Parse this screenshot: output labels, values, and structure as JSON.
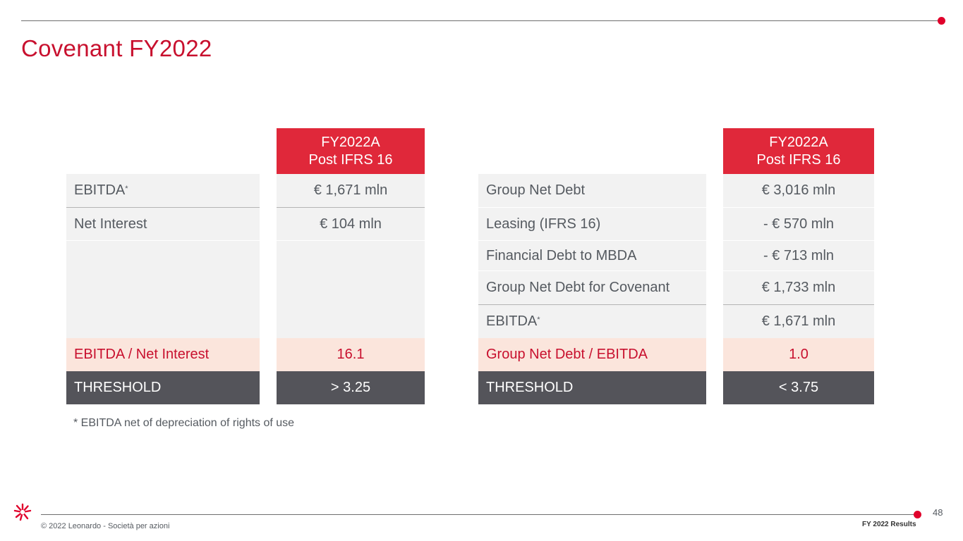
{
  "slide": {
    "title": "Covenant FY2022",
    "footnote": "* EBITDA net of depreciation of rights of use",
    "page_number": "48",
    "copyright": "© 2022 Leonardo - Società per azioni",
    "deck_label": "FY 2022 Results"
  },
  "left_table": {
    "header_line1": "FY2022A",
    "header_line2": "Post IFRS 16",
    "rows": [
      {
        "label": "EBITDA",
        "sup": "*",
        "value": "€ 1,671 mln"
      },
      {
        "label": "Net Interest",
        "value": "€ 104 mln"
      }
    ],
    "ratio": {
      "label": "EBITDA / Net Interest",
      "value": "16.1"
    },
    "threshold": {
      "label": "THRESHOLD",
      "value": "> 3.25"
    }
  },
  "right_table": {
    "header_line1": "FY2022A",
    "header_line2": "Post IFRS 16",
    "rows": [
      {
        "label": "Group Net Debt",
        "value": "€ 3,016 mln"
      },
      {
        "label": "Leasing (IFRS 16)",
        "value": "- € 570 mln"
      },
      {
        "label": "Financial Debt to MBDA",
        "value": "- € 713 mln"
      },
      {
        "label": "Group Net Debt for Covenant",
        "value": "€ 1,733 mln"
      },
      {
        "label": "EBITDA",
        "sup": "*",
        "value": "€ 1,671 mln"
      }
    ],
    "ratio": {
      "label": "Group Net Debt / EBITDA",
      "value": "1.0"
    },
    "threshold": {
      "label": "THRESHOLD",
      "value": "< 3.75"
    }
  },
  "colors": {
    "accent_red": "#c8102e",
    "header_red": "#e0283a",
    "highlight_bg": "#fbe5dc",
    "threshold_bg": "#54545a",
    "row_bg": "#f2f2f2"
  }
}
